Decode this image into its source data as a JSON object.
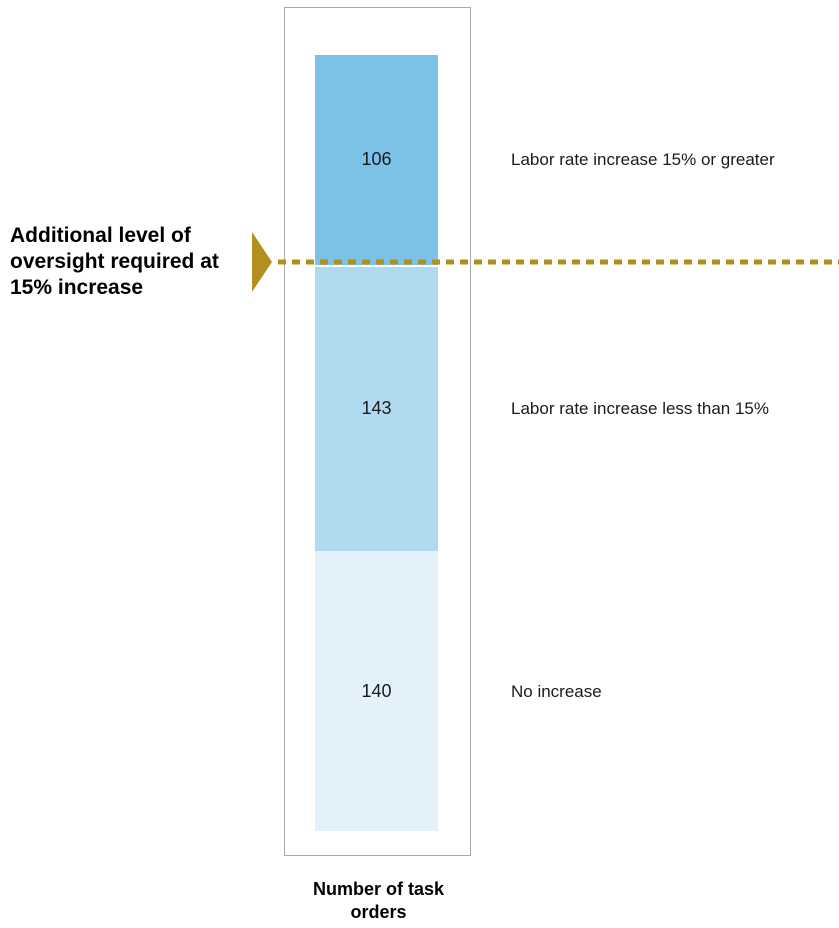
{
  "chart_data": {
    "type": "bar",
    "stacked": true,
    "orientation": "vertical",
    "series": [
      {
        "name": "No increase",
        "values": [
          140
        ],
        "color": "#e3f2fa"
      },
      {
        "name": "Labor rate increase less than 15%",
        "values": [
          143
        ],
        "color": "#b0daf0"
      },
      {
        "name": "Labor rate increase 15% or greater",
        "values": [
          106
        ],
        "color": "#7cc2e6"
      }
    ],
    "xlabel": "Number of task orders",
    "ylabel": "",
    "annotation": {
      "text": "Additional level of oversight required at 15% increase",
      "marker_color": "#b3901e",
      "line_style": "dashed"
    },
    "legend": "labels to the right of each segment",
    "grid": false
  }
}
